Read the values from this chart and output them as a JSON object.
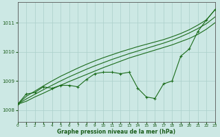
{
  "xlabel": "Graphe pression niveau de la mer (hPa)",
  "bg_color": "#cce8e4",
  "grid_color": "#aacfca",
  "line_color": "#1a6b1a",
  "marker_color": "#1a6b1a",
  "axis_color": "#555555",
  "text_color": "#1a5c1a",
  "xlim": [
    0,
    23
  ],
  "ylim": [
    1007.6,
    1011.7
  ],
  "yticks": [
    1008,
    1009,
    1010,
    1011
  ],
  "xticks": [
    0,
    1,
    2,
    3,
    4,
    5,
    6,
    7,
    8,
    9,
    10,
    11,
    12,
    13,
    14,
    15,
    16,
    17,
    18,
    19,
    20,
    21,
    22,
    23
  ],
  "series_main": [
    1008.2,
    1008.55,
    1008.6,
    1008.8,
    1008.75,
    1008.85,
    1008.85,
    1008.8,
    1009.05,
    1009.25,
    1009.3,
    1009.3,
    1009.25,
    1009.3,
    1008.75,
    1008.45,
    1008.4,
    1008.9,
    1009.0,
    1009.85,
    1010.1,
    1010.7,
    1011.1,
    1011.45
  ],
  "series_line1": [
    1008.2,
    1008.3,
    1008.45,
    1008.58,
    1008.72,
    1008.85,
    1008.98,
    1009.1,
    1009.22,
    1009.34,
    1009.46,
    1009.57,
    1009.68,
    1009.79,
    1009.88,
    1009.97,
    1010.06,
    1010.15,
    1010.24,
    1010.35,
    1010.46,
    1010.6,
    1010.78,
    1011.0
  ],
  "series_line2": [
    1008.2,
    1008.38,
    1008.54,
    1008.7,
    1008.85,
    1009.0,
    1009.14,
    1009.27,
    1009.4,
    1009.52,
    1009.63,
    1009.74,
    1009.84,
    1009.94,
    1010.03,
    1010.12,
    1010.21,
    1010.3,
    1010.4,
    1010.52,
    1010.65,
    1010.8,
    1010.97,
    1011.2
  ],
  "series_line3": [
    1008.2,
    1008.47,
    1008.65,
    1008.83,
    1009.0,
    1009.16,
    1009.3,
    1009.44,
    1009.57,
    1009.69,
    1009.8,
    1009.9,
    1010.0,
    1010.09,
    1010.18,
    1010.26,
    1010.34,
    1010.42,
    1010.52,
    1010.63,
    1010.76,
    1010.92,
    1011.1,
    1011.45
  ]
}
